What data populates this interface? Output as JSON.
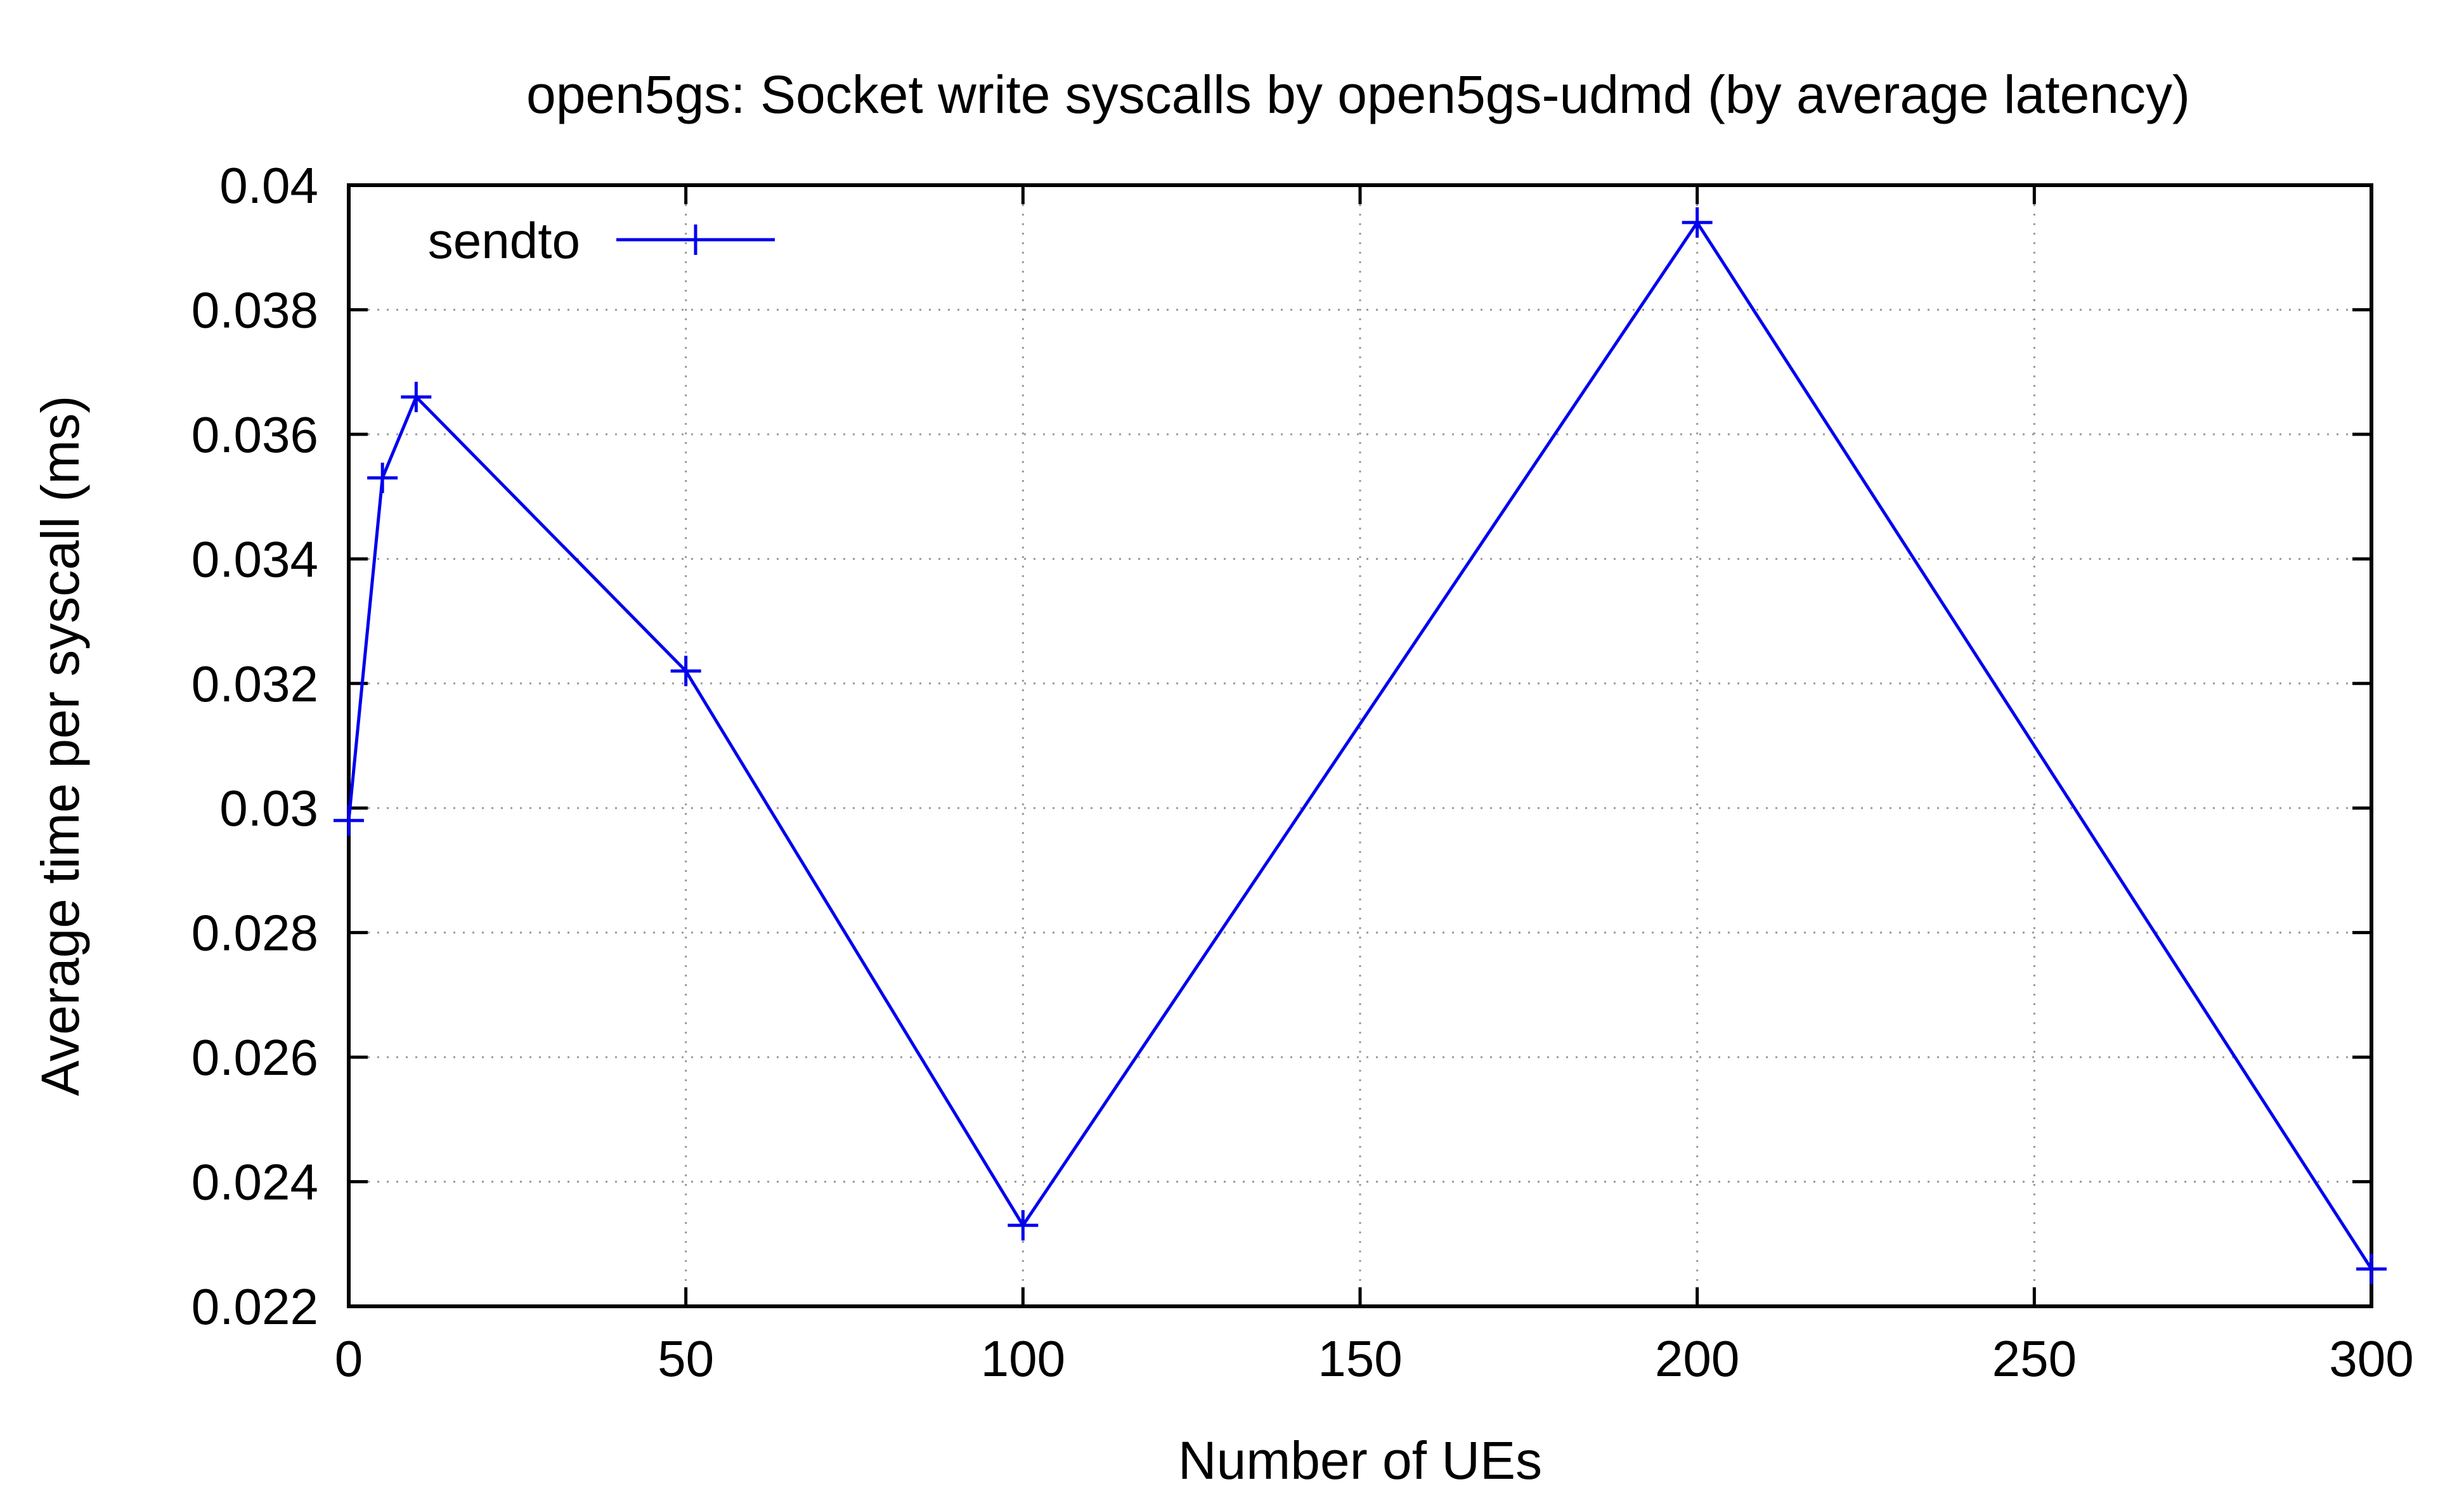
{
  "chart_data": {
    "type": "line",
    "title": "open5gs: Socket write syscalls by open5gs-udmd (by average latency)",
    "xlabel": "Number of UEs",
    "ylabel": "Average time per syscall (ms)",
    "xlim": [
      0,
      300
    ],
    "ylim": [
      0.022,
      0.04
    ],
    "xticks": [
      0,
      50,
      100,
      150,
      200,
      250,
      300
    ],
    "xtick_labels": [
      "0",
      "50",
      "100",
      "150",
      "200",
      "250",
      "300"
    ],
    "yticks": [
      0.022,
      0.024,
      0.026,
      0.028,
      0.03,
      0.032,
      0.034,
      0.036,
      0.038,
      0.04
    ],
    "ytick_labels": [
      "0.022",
      "0.024",
      "0.026",
      "0.028",
      "0.03",
      "0.032",
      "0.034",
      "0.036",
      "0.038",
      "0.04"
    ],
    "grid": true,
    "legend_position": "top-left",
    "series": [
      {
        "name": "sendto",
        "color": "#0000ee",
        "marker": "plus",
        "x": [
          0,
          5,
          10,
          50,
          100,
          200,
          300
        ],
        "y": [
          0.0298,
          0.0353,
          0.0366,
          0.0322,
          0.0233,
          0.0394,
          0.0226
        ]
      }
    ]
  }
}
